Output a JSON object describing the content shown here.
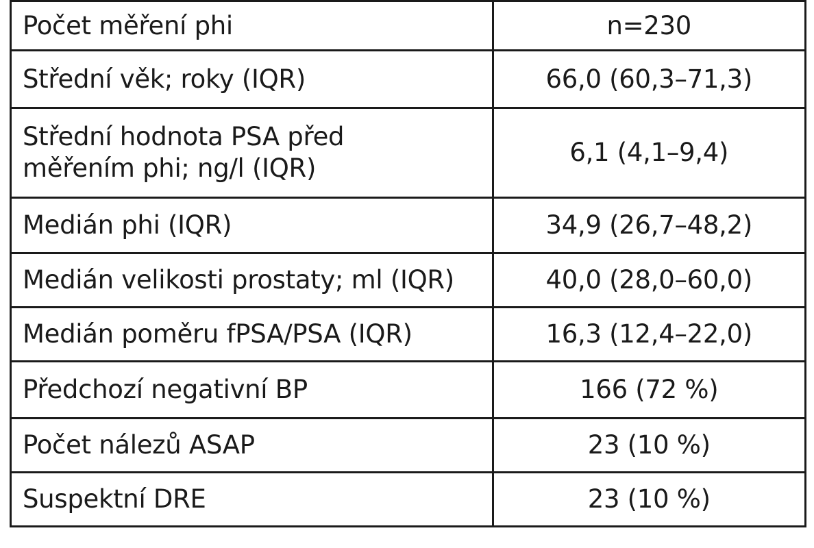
{
  "table": {
    "rows": [
      {
        "label": "Počet měření phi",
        "value": "n=230"
      },
      {
        "label": "Střední věk; roky (IQR)",
        "value": "66,0 (60,3–71,3)"
      },
      {
        "label": "Střední hodnota PSA před\nměřením phi; ng/l (IQR)",
        "value": "6,1 (4,1–9,4)"
      },
      {
        "label": "Medián phi (IQR)",
        "value": "34,9 (26,7–48,2)"
      },
      {
        "label": "Medián velikosti prostaty; ml (IQR)",
        "value": "40,0 (28,0–60,0)"
      },
      {
        "label": "Medián poměru fPSA/PSA (IQR)",
        "value": "16,3 (12,4–22,0)"
      },
      {
        "label": "Předchozí negativní BP",
        "value": "166 (72 %)"
      },
      {
        "label": "Počet nálezů ASAP",
        "value": "23 (10 %)"
      },
      {
        "label": "Suspektní DRE",
        "value": "23 (10 %)"
      }
    ]
  }
}
